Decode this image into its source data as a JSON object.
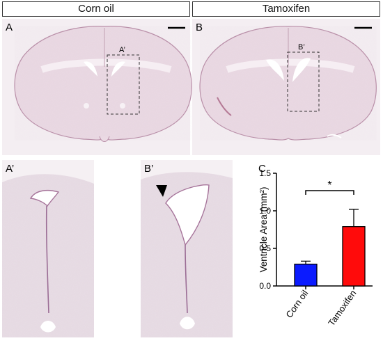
{
  "headers": {
    "left": "Corn oil",
    "right": "Tamoxifen"
  },
  "panel_labels": {
    "a": "A",
    "a_inset": "A’",
    "a_prime": "A’",
    "b": "B",
    "b_inset": "B’",
    "b_prime": "B’",
    "c": "C"
  },
  "colors": {
    "tissue": "#ead9e3",
    "tissue_edge": "#b98fa8",
    "ventricle": "#ffffff",
    "corn_oil_bar": "#0b1bff",
    "tamoxifen_bar": "#ff0b0b"
  },
  "icons": {
    "arrowhead": "black-triangle-arrowhead-icon"
  },
  "chart_data": {
    "type": "bar",
    "categories": [
      "Corn oil",
      "Tamoxifen"
    ],
    "values": [
      0.29,
      0.79
    ],
    "errors": [
      0.04,
      0.23
    ],
    "ylabel": "Ventricle Area (mm²)",
    "xlabel": "",
    "ylim": [
      0,
      1.5
    ],
    "yticks": [
      "0.0",
      "0.5",
      "1.0",
      "1.5"
    ],
    "significance": "*",
    "grid": false
  }
}
